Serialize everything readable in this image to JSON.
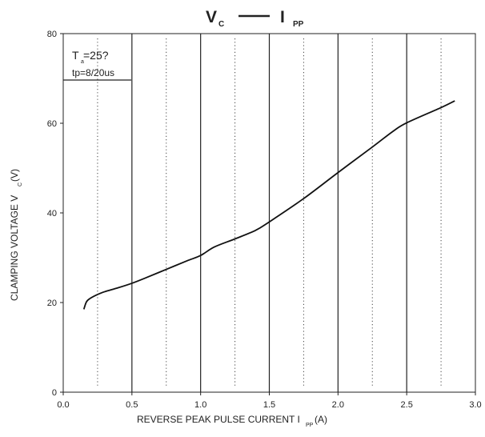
{
  "chart_data": {
    "type": "line",
    "title": {
      "main_left": "V",
      "main_left_sub": "C",
      "dash": "——",
      "main_right": "I",
      "main_right_sub": "PP"
    },
    "xlabel": {
      "text": "REVERSE PEAK PULSE CURRENT  I",
      "sub": "PP",
      "suffix": "(A)"
    },
    "ylabel": {
      "text": "CLAMPING VOLTAGE  V",
      "sub": "C",
      "suffix": "(V)"
    },
    "xlim": [
      0,
      3.0
    ],
    "ylim": [
      0,
      80
    ],
    "xticks": [
      0.0,
      0.5,
      1.0,
      1.5,
      2.0,
      2.5,
      3.0
    ],
    "xtick_labels": [
      "0.0",
      "0.5",
      "1.0",
      "1.5",
      "2.0",
      "2.5",
      "3.0"
    ],
    "yticks": [
      0,
      20,
      40,
      60,
      80
    ],
    "ytick_labels": [
      "0",
      "20",
      "40",
      "60",
      "80"
    ],
    "grid": {
      "solid_x": [
        0.5,
        1.0,
        1.5,
        2.0,
        2.5
      ],
      "dotted_x": [
        0.25,
        0.75,
        1.25,
        1.75,
        2.25,
        2.75
      ]
    },
    "annotation": {
      "line1_main": "T",
      "line1_sub": "a",
      "line1_rest": "=25?",
      "line2": "tp=8/20us"
    },
    "series": [
      {
        "x": [
          0.15,
          0.17,
          0.2,
          0.25,
          0.3,
          0.4,
          0.5,
          0.6,
          0.75,
          0.9,
          1.0,
          1.1,
          1.25,
          1.4,
          1.5,
          1.75,
          2.0,
          2.25,
          2.4,
          2.5,
          2.75,
          2.85
        ],
        "y": [
          18.5,
          20.2,
          21.0,
          21.8,
          22.4,
          23.3,
          24.3,
          25.5,
          27.4,
          29.3,
          30.5,
          32.4,
          34.2,
          36.1,
          38.0,
          43.2,
          49.0,
          54.7,
          58.2,
          60.1,
          63.5,
          65.0
        ]
      }
    ]
  }
}
